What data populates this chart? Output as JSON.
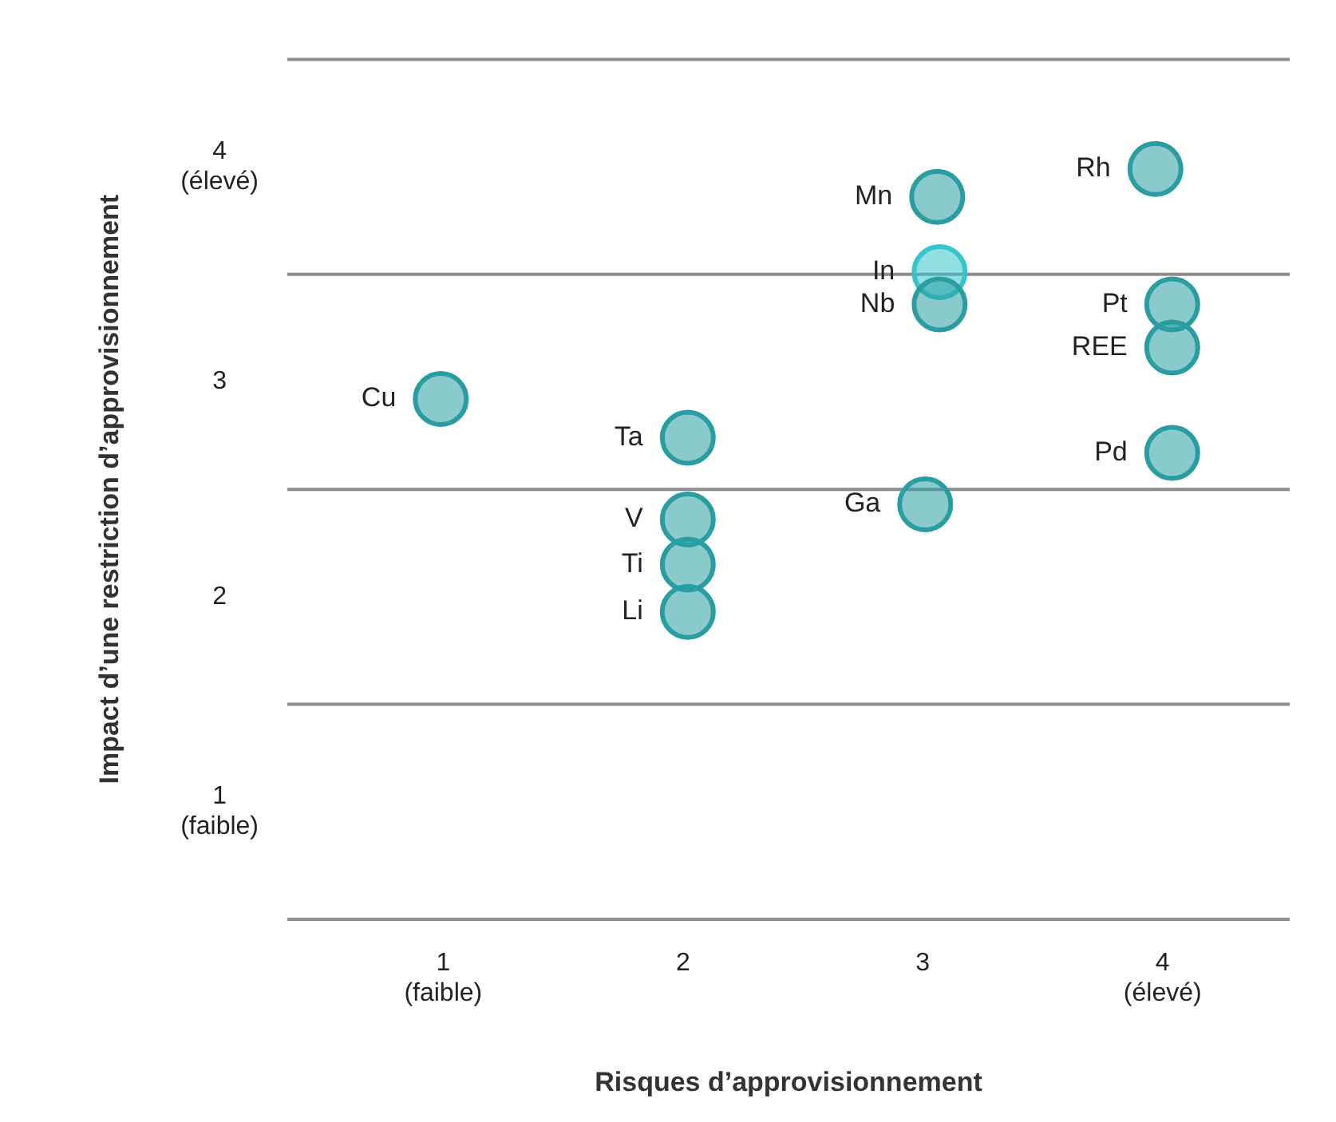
{
  "chart_data": {
    "type": "scatter",
    "xlabel": "Risques d’approvisionnement",
    "ylabel": "Impact d’une restriction d’approvisionnement",
    "x": [
      0.99,
      2.02,
      2.02,
      2.02,
      2.02,
      3.01,
      3.06,
      3.07,
      3.07,
      3.97,
      4.04,
      4.04,
      4.04
    ],
    "values": [
      2.92,
      2.74,
      2.36,
      2.15,
      1.93,
      2.43,
      3.86,
      3.51,
      3.36,
      3.99,
      3.36,
      3.16,
      2.67
    ],
    "colors": [
      "#2a9da2",
      "#2a9da2",
      "#2a9da2",
      "#2a9da2",
      "#2a9da2",
      "#2a9da2",
      "#2a9da2",
      "#35c4cb",
      "#2a9da2",
      "#2a9da2",
      "#2a9da2",
      "#2a9da2",
      "#2a9da2"
    ],
    "marker": "circle",
    "xlim": [
      0.35,
      4.53
    ],
    "ylim": [
      0.5,
      4.5
    ],
    "xticks": [
      {
        "value": 1,
        "label": "1\n(faible)"
      },
      2,
      3,
      {
        "value": 4,
        "label": "4\n(élevé)"
      }
    ],
    "yticks": [
      {
        "value": 1,
        "label": "1\n(faible)"
      },
      2,
      3,
      {
        "value": 4,
        "label": "4\n(élevé)"
      }
    ],
    "ref_lines": [
      {
        "axis": "y",
        "value": 0.5,
        "color": "#8c8c8c"
      },
      {
        "axis": "y",
        "value": 1.5,
        "color": "#8c8c8c"
      },
      {
        "axis": "y",
        "value": 2.5,
        "color": "#8c8c8c"
      },
      {
        "axis": "y",
        "value": 3.5,
        "color": "#8c8c8c"
      },
      {
        "axis": "y",
        "value": 4.5,
        "color": "#8c8c8c"
      }
    ],
    "annotations": [
      {
        "text": "Cu",
        "x": 0.99,
        "y": 2.92
      },
      {
        "text": "Ta",
        "x": 2.02,
        "y": 2.74
      },
      {
        "text": "V",
        "x": 2.02,
        "y": 2.36
      },
      {
        "text": "Ti",
        "x": 2.02,
        "y": 2.15
      },
      {
        "text": "Li",
        "x": 2.02,
        "y": 1.93
      },
      {
        "text": "Ga",
        "x": 3.01,
        "y": 2.43
      },
      {
        "text": "Mn",
        "x": 3.06,
        "y": 3.86
      },
      {
        "text": "In",
        "x": 3.07,
        "y": 3.51
      },
      {
        "text": "Nb",
        "x": 3.07,
        "y": 3.36
      },
      {
        "text": "Rh",
        "x": 3.97,
        "y": 3.99
      },
      {
        "text": "Pt",
        "x": 4.04,
        "y": 3.36
      },
      {
        "text": "REE",
        "x": 4.04,
        "y": 3.16
      },
      {
        "text": "Pd",
        "x": 4.04,
        "y": 2.67
      }
    ],
    "grid": false,
    "legend": false
  }
}
